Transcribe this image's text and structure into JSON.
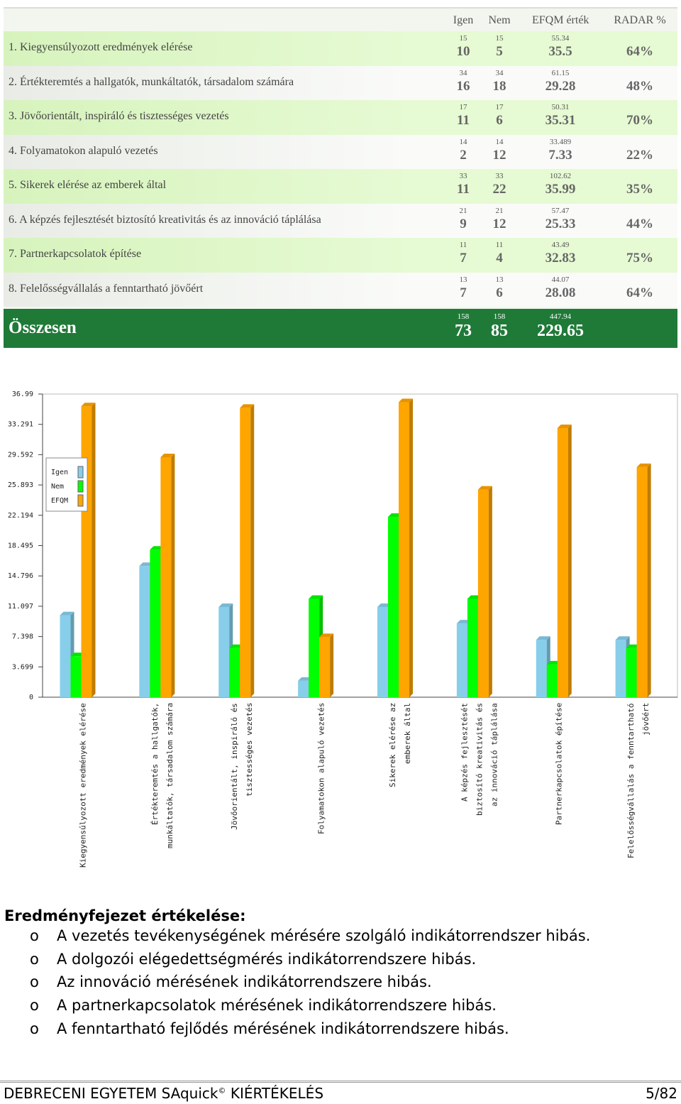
{
  "table": {
    "columns": [
      "Igen",
      "Nem",
      "EFQM érték",
      "RADAR %"
    ],
    "rows": [
      {
        "label": "1. Kiegyensúlyozott eredmények elérése",
        "max": [
          15,
          15,
          55.34
        ],
        "values": [
          10,
          5,
          35.5,
          "64%"
        ]
      },
      {
        "label": "2. Értékteremtés a hallgatók, munkáltatók, társadalom számára",
        "max": [
          34,
          34,
          61.15
        ],
        "values": [
          16,
          18,
          29.28,
          "48%"
        ]
      },
      {
        "label": "3. Jövőorientált, inspiráló és tisztességes vezetés",
        "max": [
          17,
          17,
          50.31
        ],
        "values": [
          11,
          6,
          35.31,
          "70%"
        ]
      },
      {
        "label": "4. Folyamatokon alapuló vezetés",
        "max": [
          14,
          14,
          33.489
        ],
        "values": [
          2,
          12,
          7.33,
          "22%"
        ]
      },
      {
        "label": "5. Sikerek elérése az emberek által",
        "max": [
          33,
          33,
          102.62
        ],
        "values": [
          11,
          22,
          35.99,
          "35%"
        ]
      },
      {
        "label": "6. A képzés fejlesztését biztosító kreativitás és az innováció táplálása",
        "max": [
          21,
          21,
          57.47
        ],
        "values": [
          9,
          12,
          25.33,
          "44%"
        ]
      },
      {
        "label": "7. Partnerkapcsolatok építése",
        "max": [
          11,
          11,
          43.49
        ],
        "values": [
          7,
          4,
          32.83,
          "75%"
        ]
      },
      {
        "label": "8. Felelősségvállalás a fenntartható jövőért",
        "max": [
          13,
          13,
          44.07
        ],
        "values": [
          7,
          6,
          28.08,
          "64%"
        ]
      }
    ],
    "total": {
      "label": "Összesen",
      "max": [
        158,
        158,
        447.94
      ],
      "values": [
        73,
        85,
        229.65
      ]
    }
  },
  "chart_data": {
    "type": "bar",
    "categories": [
      "Kiegyensúlyozott eredmények elérése",
      "Értékteremtés a hallgatók,\nmunkáltatók, társadalom számára",
      "Jövőorientált, inspiráló és\ntisztességes vezetés",
      "Folyamatokon alapuló vezetés",
      "Sikerek elérése az\nemberek által",
      "A képzés fejlesztését\nbiztosító kreativitás és\naz innováció táplálása",
      "Partnerkapcsolatok építése",
      "Felelősségvállalás a fenntartható\njövőért"
    ],
    "series": [
      {
        "name": "Igen",
        "color": "#87ceeb",
        "values": [
          10,
          16,
          11,
          2,
          11,
          9,
          7,
          7
        ]
      },
      {
        "name": "Nem",
        "color": "#00ff00",
        "values": [
          5,
          18,
          6,
          12,
          22,
          12,
          4,
          6
        ]
      },
      {
        "name": "EFQM",
        "color": "#ffa500",
        "values": [
          35.5,
          29.28,
          35.31,
          7.33,
          35.99,
          25.33,
          32.83,
          28.08
        ]
      }
    ],
    "ylim": [
      0,
      36.99
    ],
    "yticks": [
      0,
      3.699,
      7.398,
      11.097,
      14.796,
      18.495,
      22.194,
      25.893,
      29.592,
      33.291,
      36.99
    ]
  },
  "evaluation": {
    "title": "Eredményfejezet értékelése:",
    "bullet": "o",
    "items": [
      "A vezetés tevékenységének mérésére szolgáló indikátorrendszer hibás.",
      "A dolgozói elégedettségmérés indikátorrendszere hibás.",
      "Az innováció mérésének indikátorrendszere hibás.",
      "A partnerkapcsolatok mérésének indikátorrendszere hibás.",
      "A fenntartható fejlődés mérésének indikátorrendszere hibás."
    ]
  },
  "footer": {
    "left": "DEBRECENI EGYETEM SAquick",
    "sup": "©",
    "left_rest": "KIÉRTÉKELÉS",
    "page": "5/82"
  }
}
